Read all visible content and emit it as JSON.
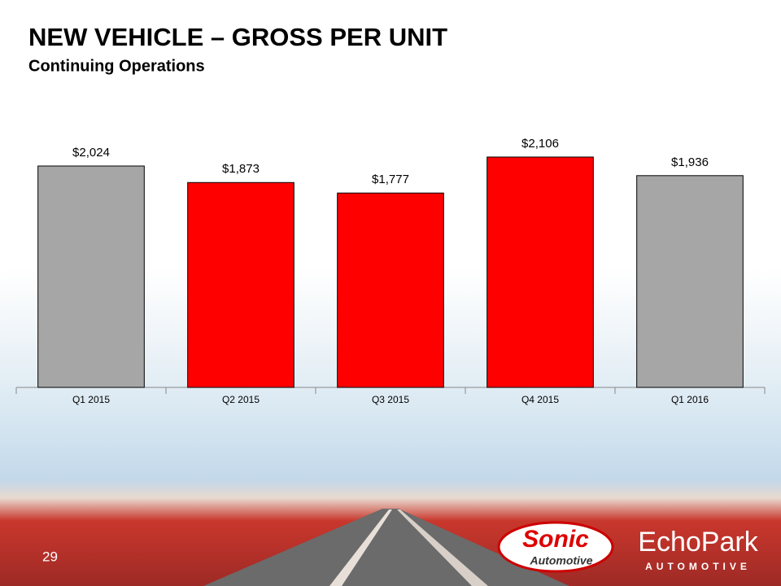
{
  "title": "NEW VEHICLE – GROSS PER UNIT",
  "subtitle": "Continuing Operations",
  "page_number": "29",
  "logos": {
    "sonic": [
      "Sonic",
      "Automotive"
    ],
    "echopark": [
      "EchoPark",
      "AUTOMOTIVE"
    ]
  },
  "chart_data": {
    "type": "bar",
    "categories": [
      "Q1 2015",
      "Q2 2015",
      "Q3 2015",
      "Q4 2015",
      "Q1 2016"
    ],
    "values": [
      2024,
      1873,
      1777,
      2106,
      1936
    ],
    "value_labels": [
      "$2,024",
      "$1,873",
      "$1,777",
      "$2,106",
      "$1,936"
    ],
    "colors": [
      "#a6a6a6",
      "#ff0000",
      "#ff0000",
      "#ff0000",
      "#a6a6a6"
    ],
    "ylim": [
      0,
      2500
    ]
  }
}
